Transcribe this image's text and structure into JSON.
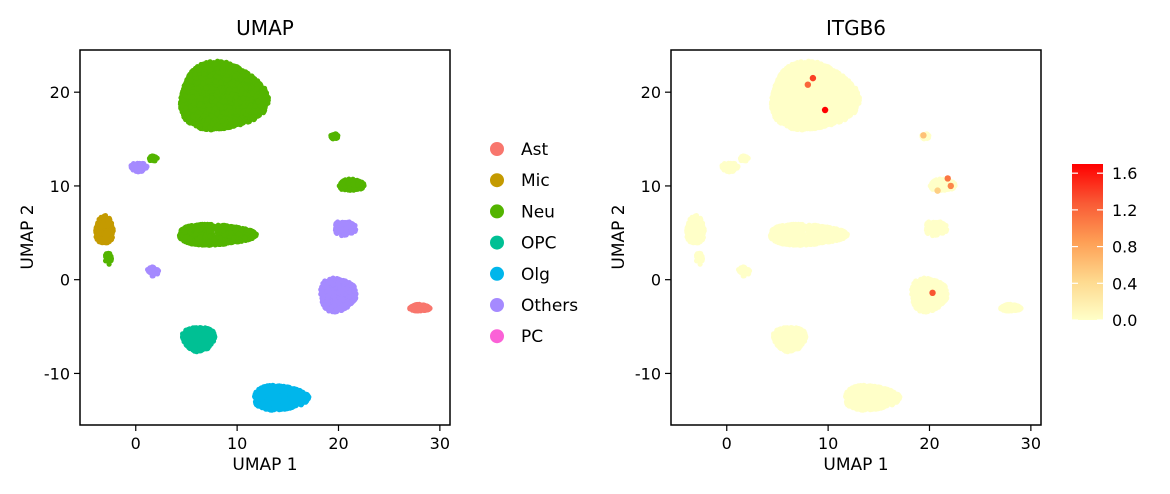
{
  "chart_data": [
    {
      "type": "scatter",
      "title": "UMAP",
      "xlabel": "UMAP 1",
      "ylabel": "UMAP 2",
      "xlim": [
        -5.5,
        31
      ],
      "ylim": [
        -15.5,
        24.5
      ],
      "xticks": [
        0,
        10,
        20,
        30
      ],
      "yticks": [
        -10,
        0,
        10,
        20
      ],
      "xtick_labels": [
        "0",
        "10",
        "20",
        "30"
      ],
      "ytick_labels": [
        "-10",
        "0",
        "10",
        "20"
      ],
      "legend": {
        "position": "right",
        "entries": [
          {
            "label": "Ast",
            "color": "#F8766D"
          },
          {
            "label": "Mic",
            "color": "#C49A00"
          },
          {
            "label": "Neu",
            "color": "#53B400"
          },
          {
            "label": "OPC",
            "color": "#00C094"
          },
          {
            "label": "Olg",
            "color": "#00B6EB"
          },
          {
            "label": "Others",
            "color": "#A58AFF"
          },
          {
            "label": "PC",
            "color": "#FB61D7"
          }
        ]
      },
      "clusters": [
        {
          "label": "Neu",
          "cx": 8.5,
          "cy": 19.5,
          "rx": 4.3,
          "ry": 3.6,
          "n": 2600,
          "shape": "blob"
        },
        {
          "label": "Neu",
          "cx": 7.8,
          "cy": 4.8,
          "rx": 3.8,
          "ry": 1.1,
          "n": 1100,
          "shape": "band"
        },
        {
          "label": "Neu",
          "cx": 21.3,
          "cy": 10.1,
          "rx": 1.3,
          "ry": 0.6,
          "n": 160,
          "shape": "blob"
        },
        {
          "label": "Neu",
          "cx": 19.6,
          "cy": 15.3,
          "rx": 0.4,
          "ry": 0.3,
          "n": 25,
          "shape": "blob"
        },
        {
          "label": "Neu",
          "cx": 1.7,
          "cy": 12.9,
          "rx": 0.4,
          "ry": 0.3,
          "n": 20,
          "shape": "blob"
        },
        {
          "label": "Neu",
          "cx": -2.7,
          "cy": 2.4,
          "rx": 0.3,
          "ry": 0.8,
          "n": 25,
          "shape": "blob"
        },
        {
          "label": "Mic",
          "cx": -3.1,
          "cy": 5.3,
          "rx": 0.9,
          "ry": 1.5,
          "n": 260,
          "shape": "blob"
        },
        {
          "label": "Others",
          "cx": 0.3,
          "cy": 12.0,
          "rx": 0.8,
          "ry": 0.5,
          "n": 90,
          "shape": "blob"
        },
        {
          "label": "Others",
          "cx": 1.7,
          "cy": 0.9,
          "rx": 0.6,
          "ry": 0.5,
          "n": 40,
          "shape": "blob"
        },
        {
          "label": "Others",
          "cx": 20.6,
          "cy": 5.5,
          "rx": 1.1,
          "ry": 0.8,
          "n": 100,
          "shape": "blob"
        },
        {
          "label": "Others",
          "cx": 19.9,
          "cy": -1.6,
          "rx": 1.8,
          "ry": 1.8,
          "n": 560,
          "shape": "blob"
        },
        {
          "label": "OPC",
          "cx": 6.2,
          "cy": -6.3,
          "rx": 1.6,
          "ry": 1.3,
          "n": 500,
          "shape": "blob"
        },
        {
          "label": "Olg",
          "cx": 14.2,
          "cy": -12.6,
          "rx": 2.7,
          "ry": 1.3,
          "n": 900,
          "shape": "blob"
        },
        {
          "label": "Ast",
          "cx": 28.0,
          "cy": -3.0,
          "rx": 1.0,
          "ry": 0.35,
          "n": 170,
          "shape": "blob"
        }
      ]
    },
    {
      "type": "scatter",
      "title": "ITGB6",
      "xlabel": "UMAP 1",
      "ylabel": "UMAP 2",
      "xlim": [
        -5.5,
        31
      ],
      "ylim": [
        -15.5,
        24.5
      ],
      "xticks": [
        0,
        10,
        20,
        30
      ],
      "yticks": [
        -10,
        0,
        10,
        20
      ],
      "xtick_labels": [
        "0",
        "10",
        "20",
        "30"
      ],
      "ytick_labels": [
        "-10",
        "0",
        "10",
        "20"
      ],
      "base_color": "#FFFFC8",
      "colorbar": {
        "min": 0.0,
        "max": 1.7,
        "ticks": [
          0.0,
          0.4,
          0.8,
          1.2,
          1.6
        ],
        "tick_labels": [
          "0.0",
          "0.4",
          "0.8",
          "1.2",
          "1.6"
        ],
        "colors": [
          "#FFFFC8",
          "#FED98E",
          "#FE9F55",
          "#F95A35",
          "#FF0000"
        ]
      },
      "expressing_points": [
        {
          "x": 8.5,
          "y": 21.5,
          "v": 1.4
        },
        {
          "x": 8.0,
          "y": 20.8,
          "v": 1.2
        },
        {
          "x": 9.7,
          "y": 18.1,
          "v": 1.7
        },
        {
          "x": 19.4,
          "y": 15.4,
          "v": 0.6
        },
        {
          "x": 21.8,
          "y": 10.8,
          "v": 1.1
        },
        {
          "x": 22.1,
          "y": 10.0,
          "v": 1.0
        },
        {
          "x": 20.8,
          "y": 9.5,
          "v": 0.5
        },
        {
          "x": 20.3,
          "y": -1.4,
          "v": 1.3
        }
      ]
    }
  ]
}
